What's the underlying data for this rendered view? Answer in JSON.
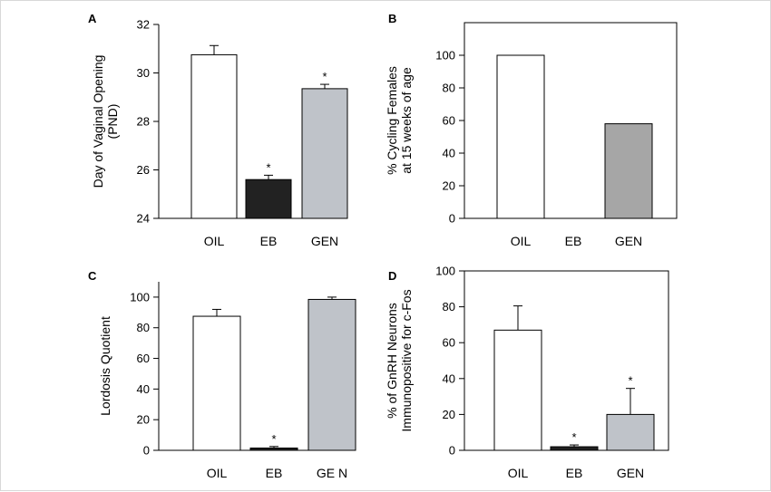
{
  "chart_data": [
    {
      "panel": "A",
      "type": "bar",
      "categories": [
        "OIL",
        "EB",
        "GEN"
      ],
      "values": [
        30.75,
        25.6,
        29.35
      ],
      "errors": [
        0.38,
        0.18,
        0.18
      ],
      "significant": [
        false,
        true,
        true
      ],
      "bar_colors": [
        "#ffffff",
        "#222222",
        "#bfc3c9"
      ],
      "ylabel": [
        "Day of Vaginal Opening",
        "(PND)"
      ],
      "ylim": [
        24,
        32
      ],
      "yticks": [
        24,
        26,
        28,
        30,
        32
      ],
      "frame": "left-axis"
    },
    {
      "panel": "B",
      "type": "bar",
      "categories": [
        "OIL",
        "EB",
        "GEN"
      ],
      "values": [
        100,
        0,
        58
      ],
      "errors": [
        0,
        0,
        0
      ],
      "significant": [
        false,
        false,
        false
      ],
      "bar_colors": [
        "#ffffff",
        "#222222",
        "#a6a6a6"
      ],
      "ylabel": [
        "% Cycling Females",
        "at 15 weeks of age"
      ],
      "ylim": [
        0,
        120
      ],
      "yticks": [
        0,
        20,
        40,
        60,
        80,
        100
      ],
      "frame": "box"
    },
    {
      "panel": "C",
      "type": "bar",
      "categories": [
        "OIL",
        "EB",
        "GE N"
      ],
      "values": [
        87.5,
        1.5,
        98.5
      ],
      "errors": [
        4.5,
        1.0,
        1.5
      ],
      "significant": [
        false,
        true,
        false
      ],
      "bar_colors": [
        "#ffffff",
        "#222222",
        "#bfc3c9"
      ],
      "ylabel": [
        "Lordosis Quotient"
      ],
      "ylim": [
        0,
        110
      ],
      "yticks": [
        0,
        20,
        40,
        60,
        80,
        100
      ],
      "frame": "left-axis"
    },
    {
      "panel": "D",
      "type": "bar",
      "categories": [
        "OIL",
        "EB",
        "GEN"
      ],
      "values": [
        67,
        2,
        20
      ],
      "errors": [
        13.5,
        1.0,
        14.5
      ],
      "significant": [
        false,
        true,
        true
      ],
      "bar_colors": [
        "#ffffff",
        "#222222",
        "#bfc3c9"
      ],
      "ylabel": [
        "% of GnRH Neurons",
        "Immunopositive for c-Fos"
      ],
      "ylim": [
        0,
        100
      ],
      "yticks": [
        0,
        20,
        40,
        60,
        80,
        100
      ],
      "frame": "box"
    }
  ],
  "significance_marker": "*"
}
